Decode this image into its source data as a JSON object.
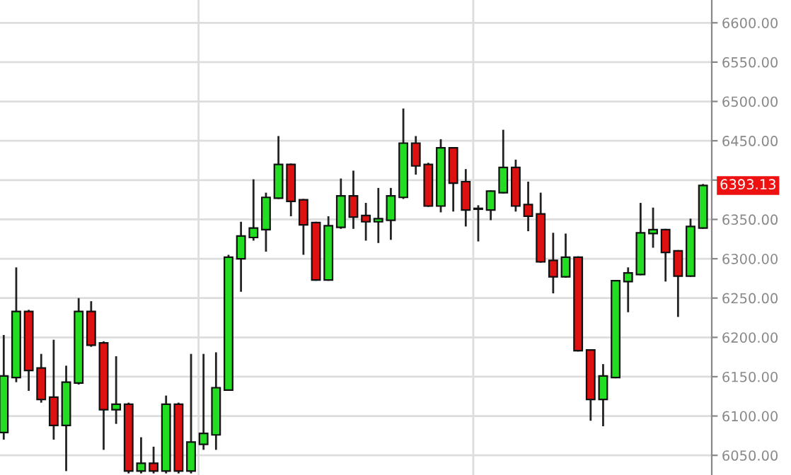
{
  "chart_data": {
    "type": "candlestick",
    "categories": [
      null,
      null,
      null,
      null,
      null,
      null,
      null,
      null,
      null,
      null,
      null,
      null,
      null,
      null,
      null,
      null,
      null,
      null,
      null,
      null,
      null,
      null,
      null,
      null,
      null,
      null,
      null,
      null,
      null,
      null,
      null,
      null,
      null,
      null,
      null,
      null,
      null,
      null,
      null,
      null,
      null,
      null,
      null,
      null,
      null,
      null,
      null,
      null,
      null,
      null,
      null,
      null,
      null,
      null,
      null,
      null,
      null
    ],
    "ohlc": [
      [
        6079,
        6203,
        6070,
        6151
      ],
      [
        6149,
        6289,
        6143,
        6233
      ],
      [
        6233,
        6235,
        6132,
        6158
      ],
      [
        6161,
        6179,
        6117,
        6121
      ],
      [
        6124,
        6197,
        6070,
        6088
      ],
      [
        6088,
        6164,
        6030,
        6143
      ],
      [
        6142,
        6250,
        6140,
        6233
      ],
      [
        6233,
        6246,
        6188,
        6190
      ],
      [
        6193,
        6195,
        6057,
        6108
      ],
      [
        6108,
        6176,
        6090,
        6115
      ],
      [
        6115,
        6117,
        6027,
        6030
      ],
      [
        6030,
        6073,
        6027,
        6040
      ],
      [
        6040,
        6061,
        6027,
        6030
      ],
      [
        6030,
        6126,
        6027,
        6115
      ],
      [
        6115,
        6117,
        6027,
        6030
      ],
      [
        6030,
        6179,
        6027,
        6067
      ],
      [
        6064,
        6179,
        6057,
        6078
      ],
      [
        6076,
        6181,
        6057,
        6136
      ],
      [
        6133,
        6305,
        6132,
        6302
      ],
      [
        6300,
        6347,
        6258,
        6329
      ],
      [
        6327,
        6401,
        6323,
        6339
      ],
      [
        6337,
        6384,
        6309,
        6378
      ],
      [
        6377,
        6456,
        6376,
        6420
      ],
      [
        6420,
        6421,
        6354,
        6373
      ],
      [
        6375,
        6376,
        6305,
        6343
      ],
      [
        6346,
        6347,
        6272,
        6273
      ],
      [
        6273,
        6354,
        6272,
        6342
      ],
      [
        6340,
        6402,
        6338,
        6380
      ],
      [
        6380,
        6412,
        6338,
        6353
      ],
      [
        6355,
        6371,
        6323,
        6347
      ],
      [
        6347,
        6390,
        6320,
        6351
      ],
      [
        6349,
        6390,
        6324,
        6380
      ],
      [
        6378,
        6491,
        6376,
        6447
      ],
      [
        6447,
        6456,
        6407,
        6418
      ],
      [
        6420,
        6422,
        6366,
        6367
      ],
      [
        6367,
        6452,
        6359,
        6441
      ],
      [
        6441,
        6441,
        6360,
        6396
      ],
      [
        6398,
        6414,
        6341,
        6362
      ],
      [
        6364,
        6368,
        6322,
        6363
      ],
      [
        6362,
        6387,
        6349,
        6386
      ],
      [
        6384,
        6464,
        6383,
        6416
      ],
      [
        6416,
        6426,
        6360,
        6367
      ],
      [
        6369,
        6398,
        6335,
        6354
      ],
      [
        6357,
        6384,
        6295,
        6296
      ],
      [
        6298,
        6333,
        6256,
        6277
      ],
      [
        6277,
        6332,
        6276,
        6302
      ],
      [
        6302,
        6303,
        6182,
        6183
      ],
      [
        6184,
        6185,
        6094,
        6121
      ],
      [
        6121,
        6166,
        6087,
        6151
      ],
      [
        6149,
        6273,
        6148,
        6272
      ],
      [
        6271,
        6289,
        6232,
        6282
      ],
      [
        6280,
        6371,
        6279,
        6333
      ],
      [
        6332,
        6365,
        6314,
        6337
      ],
      [
        6337,
        6338,
        6271,
        6308
      ],
      [
        6310,
        6311,
        6226,
        6278
      ],
      [
        6278,
        6351,
        6277,
        6341
      ],
      [
        6339,
        6395,
        6338,
        6393.13
      ]
    ],
    "colors": [
      "#22dd22",
      "#22dd22",
      "#dd1111",
      "#dd1111",
      "#dd1111",
      "#22dd22",
      "#22dd22",
      "#dd1111",
      "#dd1111",
      "#22dd22",
      "#dd1111",
      "#22dd22",
      "#dd1111",
      "#22dd22",
      "#dd1111",
      "#22dd22",
      "#22dd22",
      "#22dd22",
      "#22dd22",
      "#22dd22",
      "#22dd22",
      "#22dd22",
      "#22dd22",
      "#dd1111",
      "#dd1111",
      "#dd1111",
      "#22dd22",
      "#22dd22",
      "#dd1111",
      "#dd1111",
      "#22dd22",
      "#22dd22",
      "#22dd22",
      "#dd1111",
      "#dd1111",
      "#22dd22",
      "#dd1111",
      "#dd1111",
      "#22dd22",
      "#22dd22",
      "#22dd22",
      "#dd1111",
      "#dd1111",
      "#dd1111",
      "#dd1111",
      "#22dd22",
      "#dd1111",
      "#dd1111",
      "#22dd22",
      "#22dd22",
      "#22dd22",
      "#22dd22",
      "#22dd22",
      "#dd1111",
      "#dd1111",
      "#22dd22",
      "#22dd22"
    ],
    "ylim": [
      6025,
      6629
    ],
    "yticks": [
      {
        "value": 6050,
        "label": "6050.00"
      },
      {
        "value": 6100,
        "label": "6100.00"
      },
      {
        "value": 6150,
        "label": "6150.00"
      },
      {
        "value": 6200,
        "label": "6200.00"
      },
      {
        "value": 6250,
        "label": "6250.00"
      },
      {
        "value": 6300,
        "label": "6300.00"
      },
      {
        "value": 6350,
        "label": "6350.00"
      },
      {
        "value": 6400,
        "label": null
      },
      {
        "value": 6450,
        "label": "6450.00"
      },
      {
        "value": 6500,
        "label": "6500.00"
      },
      {
        "value": 6550,
        "label": "6550.00"
      },
      {
        "value": 6600,
        "label": "6600.00"
      }
    ],
    "grid": "y",
    "tick_labels": "y",
    "annotations": [
      "6393.13"
    ]
  }
}
